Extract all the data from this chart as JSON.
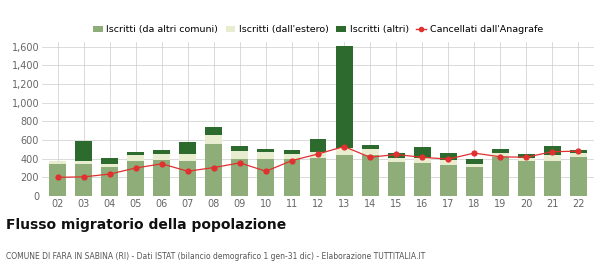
{
  "years": [
    "02",
    "03",
    "04",
    "05",
    "06",
    "07",
    "08",
    "09",
    "10",
    "11",
    "12",
    "13",
    "14",
    "15",
    "16",
    "17",
    "18",
    "19",
    "20",
    "21",
    "22"
  ],
  "iscritti_da_altri": [
    340,
    340,
    310,
    380,
    390,
    370,
    555,
    395,
    400,
    400,
    410,
    440,
    440,
    360,
    355,
    330,
    315,
    415,
    375,
    375,
    415
  ],
  "iscritti_estero": [
    30,
    30,
    35,
    55,
    55,
    80,
    100,
    90,
    70,
    50,
    60,
    70,
    60,
    50,
    55,
    55,
    30,
    45,
    35,
    60,
    50
  ],
  "iscritti_altri": [
    10,
    220,
    60,
    35,
    50,
    130,
    80,
    50,
    35,
    45,
    145,
    1100,
    45,
    55,
    120,
    80,
    55,
    45,
    35,
    100,
    30
  ],
  "cancellati": [
    200,
    205,
    235,
    300,
    345,
    265,
    305,
    355,
    265,
    380,
    450,
    530,
    415,
    445,
    415,
    395,
    460,
    420,
    415,
    475,
    480
  ],
  "color_da_altri": "#8fad78",
  "color_estero": "#e8edcf",
  "color_altri": "#2d6a2d",
  "color_cancellati": "#e03030",
  "ylim": [
    0,
    1650
  ],
  "yticks": [
    0,
    200,
    400,
    600,
    800,
    1000,
    1200,
    1400,
    1600
  ],
  "ytick_labels": [
    "0",
    "200",
    "400",
    "600",
    "800",
    "1,000",
    "1,200",
    "1,400",
    "1,600"
  ],
  "legend_labels": [
    "Iscritti (da altri comuni)",
    "Iscritti (dall'estero)",
    "Iscritti (altri)",
    "Cancellati dall'Anagrafe"
  ],
  "title": "Flusso migratorio della popolazione",
  "subtitle": "COMUNE DI FARA IN SABINA (RI) - Dati ISTAT (bilancio demografico 1 gen-31 dic) - Elaborazione TUTTITALIA.IT",
  "bg_color": "#ffffff",
  "grid_color": "#cccccc"
}
